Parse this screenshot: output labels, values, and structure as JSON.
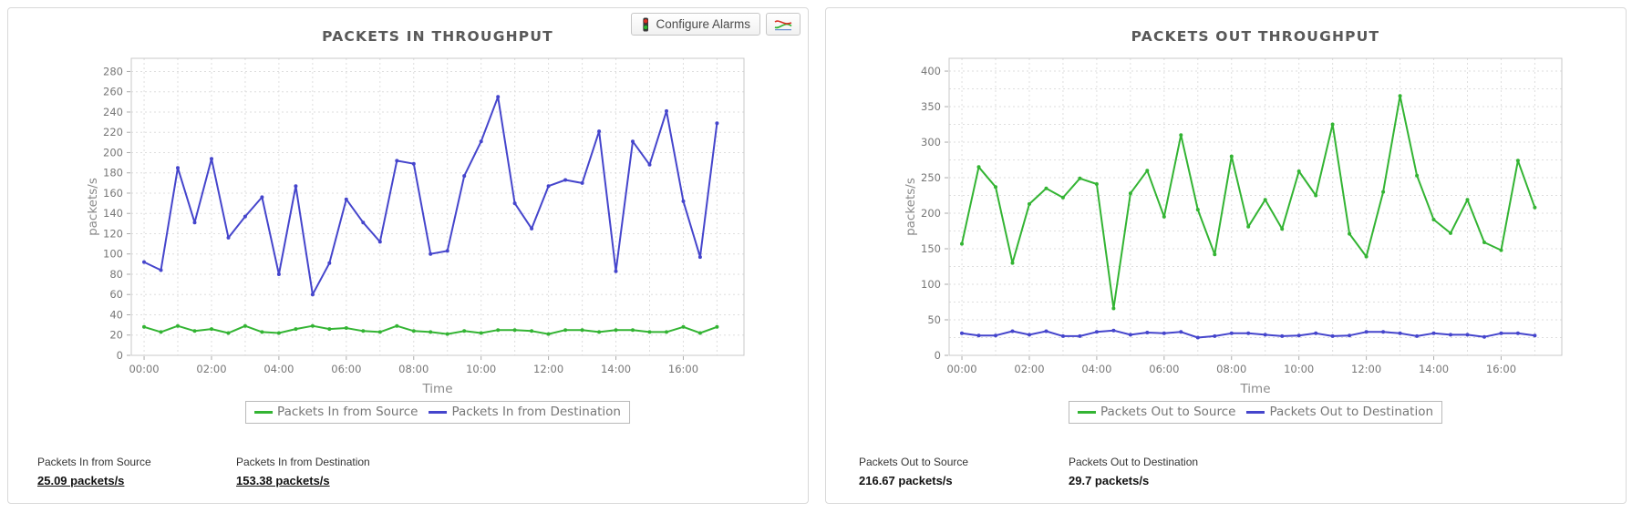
{
  "header": {
    "configure_alarms_button": "Configure Alarms",
    "configure_alarms_icon": "traffic-light-icon",
    "chart_button_icon": "line-chart-icon"
  },
  "panels": [
    {
      "stats": [
        {
          "label": "Packets In from Source",
          "value": "25.09 packets/s",
          "underline": true
        },
        {
          "label": "Packets In from Destination",
          "value": "153.38 packets/s",
          "underline": true
        }
      ]
    },
    {
      "stats": [
        {
          "label": "Packets Out to Source",
          "value": "216.67 packets/s",
          "underline": false
        },
        {
          "label": "Packets Out to Destination",
          "value": "29.7 packets/s",
          "underline": false
        }
      ]
    }
  ],
  "chart_data": [
    {
      "type": "line",
      "title": "PACKETS IN THROUGHPUT",
      "xlabel": "Time",
      "ylabel": "packets/s",
      "x_tick_labels": [
        "00:00",
        "02:00",
        "04:00",
        "06:00",
        "08:00",
        "10:00",
        "12:00",
        "14:00",
        "16:00"
      ],
      "x_tick_hours": [
        0,
        2,
        4,
        6,
        8,
        10,
        12,
        14,
        16
      ],
      "x_minor_grid_hours": 1,
      "y_ticks": [
        0,
        20,
        40,
        60,
        80,
        100,
        120,
        140,
        160,
        180,
        200,
        220,
        240,
        260,
        280
      ],
      "y_minor_step": 20,
      "ylim": [
        0,
        293
      ],
      "xlim_hours": [
        -0.38,
        17.8
      ],
      "x_start_hour": 0,
      "x_step_hours": 0.5,
      "grid": "dotted",
      "legend_position": "bottom",
      "series": [
        {
          "name": "Packets In from Source",
          "color": "#33b433",
          "values": [
            28,
            23,
            29,
            24,
            26,
            22,
            29,
            23,
            22,
            26,
            29,
            26,
            27,
            24,
            23,
            29,
            24,
            23,
            21,
            24,
            22,
            25,
            25,
            24,
            21,
            25,
            25,
            23,
            25,
            25,
            23,
            23,
            28,
            22,
            28
          ]
        },
        {
          "name": "Packets In from Destination",
          "color": "#4545cc",
          "values": [
            92,
            84,
            185,
            131,
            194,
            116,
            137,
            156,
            80,
            167,
            60,
            91,
            154,
            131,
            112,
            192,
            189,
            100,
            103,
            177,
            211,
            255,
            150,
            125,
            167,
            173,
            170,
            221,
            83,
            211,
            188,
            241,
            152,
            97,
            229
          ]
        }
      ]
    },
    {
      "type": "line",
      "title": "PACKETS OUT THROUGHPUT",
      "xlabel": "Time",
      "ylabel": "packets/s",
      "x_tick_labels": [
        "00:00",
        "02:00",
        "04:00",
        "06:00",
        "08:00",
        "10:00",
        "12:00",
        "14:00",
        "16:00"
      ],
      "x_tick_hours": [
        0,
        2,
        4,
        6,
        8,
        10,
        12,
        14,
        16
      ],
      "x_minor_grid_hours": 1,
      "y_ticks": [
        0,
        50,
        100,
        150,
        200,
        250,
        300,
        350,
        400
      ],
      "y_minor_step": 25,
      "ylim": [
        0,
        418
      ],
      "xlim_hours": [
        -0.38,
        17.8
      ],
      "x_start_hour": 0,
      "x_step_hours": 0.5,
      "grid": "dotted",
      "legend_position": "bottom",
      "series": [
        {
          "name": "Packets Out to Source",
          "color": "#33b433",
          "values": [
            157,
            265,
            237,
            130,
            213,
            235,
            222,
            249,
            241,
            66,
            228,
            260,
            195,
            310,
            205,
            142,
            280,
            181,
            219,
            178,
            259,
            225,
            325,
            171,
            139,
            230,
            365,
            253,
            191,
            172,
            219,
            159,
            148,
            274,
            208
          ]
        },
        {
          "name": "Packets Out to Destination",
          "color": "#4545cc",
          "values": [
            31,
            28,
            28,
            34,
            29,
            34,
            27,
            27,
            33,
            35,
            29,
            32,
            31,
            33,
            25,
            27,
            31,
            31,
            29,
            27,
            28,
            31,
            27,
            28,
            33,
            33,
            31,
            27,
            31,
            29,
            29,
            26,
            31,
            31,
            28
          ]
        }
      ]
    }
  ]
}
